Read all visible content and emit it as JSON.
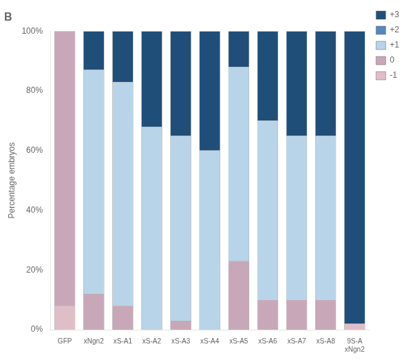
{
  "chart_data": {
    "type": "bar",
    "title": "B",
    "stacked": true,
    "categories": [
      "GFP",
      "xNgn2",
      "xS-A1",
      "xS-A2",
      "xS-A3",
      "xS-A4",
      "xS-A5",
      "xS-A6",
      "xS-A7",
      "xS-A8",
      "9S-A\nxNgn2"
    ],
    "series": [
      {
        "name": "-1",
        "color": "#e0bec8",
        "values": [
          0.08,
          0.0,
          0.0,
          0.0,
          0.0,
          0.0,
          0.0,
          0.0,
          0.0,
          0.0,
          0.02
        ]
      },
      {
        "name": "0",
        "color": "#c8a8b8",
        "values": [
          0.92,
          0.12,
          0.08,
          0.0,
          0.03,
          0.0,
          0.23,
          0.1,
          0.1,
          0.1,
          0.0
        ]
      },
      {
        "name": "+1",
        "color": "#b8d4e8",
        "values": [
          0.0,
          0.75,
          0.75,
          0.68,
          0.62,
          0.6,
          0.65,
          0.6,
          0.55,
          0.55,
          0.0
        ]
      },
      {
        "name": "+2",
        "color": "#5588bb",
        "values": [
          0.0,
          0.0,
          0.0,
          0.0,
          0.0,
          0.0,
          0.0,
          0.0,
          0.0,
          0.0,
          0.0
        ]
      },
      {
        "name": "+3",
        "color": "#1f4e79",
        "values": [
          0.0,
          0.13,
          0.17,
          0.32,
          0.35,
          0.4,
          0.12,
          0.3,
          0.35,
          0.35,
          0.98
        ]
      }
    ],
    "y_label": "Percentage embryos",
    "ylim": [
      0,
      1.0
    ],
    "yticks": [
      {
        "value": 0,
        "label": "0%"
      },
      {
        "value": 0.2,
        "label": "20%"
      },
      {
        "value": 0.4,
        "label": "40%"
      },
      {
        "value": 0.6,
        "label": "60%"
      },
      {
        "value": 0.8,
        "label": "80%"
      },
      {
        "value": 1.0,
        "label": "100%"
      }
    ],
    "grid": false,
    "legend": "right"
  }
}
